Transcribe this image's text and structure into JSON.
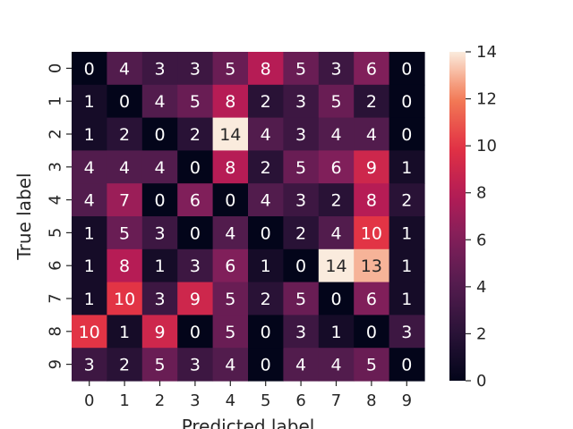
{
  "chart_data": {
    "type": "heatmap",
    "title": "",
    "xlabel": "Predicted label",
    "ylabel": "True label",
    "x_categories": [
      "0",
      "1",
      "2",
      "3",
      "4",
      "5",
      "6",
      "7",
      "8",
      "9"
    ],
    "y_categories": [
      "0",
      "1",
      "2",
      "3",
      "4",
      "5",
      "6",
      "7",
      "8",
      "9"
    ],
    "values": [
      [
        0,
        4,
        3,
        3,
        5,
        8,
        5,
        3,
        6,
        0
      ],
      [
        1,
        0,
        4,
        5,
        8,
        2,
        3,
        5,
        2,
        0
      ],
      [
        1,
        2,
        0,
        2,
        14,
        4,
        3,
        4,
        4,
        0
      ],
      [
        4,
        4,
        4,
        0,
        8,
        2,
        5,
        6,
        9,
        1
      ],
      [
        4,
        7,
        0,
        6,
        0,
        4,
        3,
        2,
        8,
        2
      ],
      [
        1,
        5,
        3,
        0,
        4,
        0,
        2,
        4,
        10,
        1
      ],
      [
        1,
        8,
        1,
        3,
        6,
        1,
        0,
        14,
        13,
        1
      ],
      [
        1,
        10,
        3,
        9,
        5,
        2,
        5,
        0,
        6,
        1
      ],
      [
        10,
        1,
        9,
        0,
        5,
        0,
        3,
        1,
        0,
        3
      ],
      [
        3,
        2,
        5,
        3,
        4,
        0,
        4,
        4,
        5,
        0
      ]
    ],
    "vmin": 0,
    "vmax": 14,
    "colorbar_ticks": [
      "0",
      "2",
      "4",
      "6",
      "8",
      "10",
      "12",
      "14"
    ],
    "colormap": "rocket",
    "grid": false
  }
}
